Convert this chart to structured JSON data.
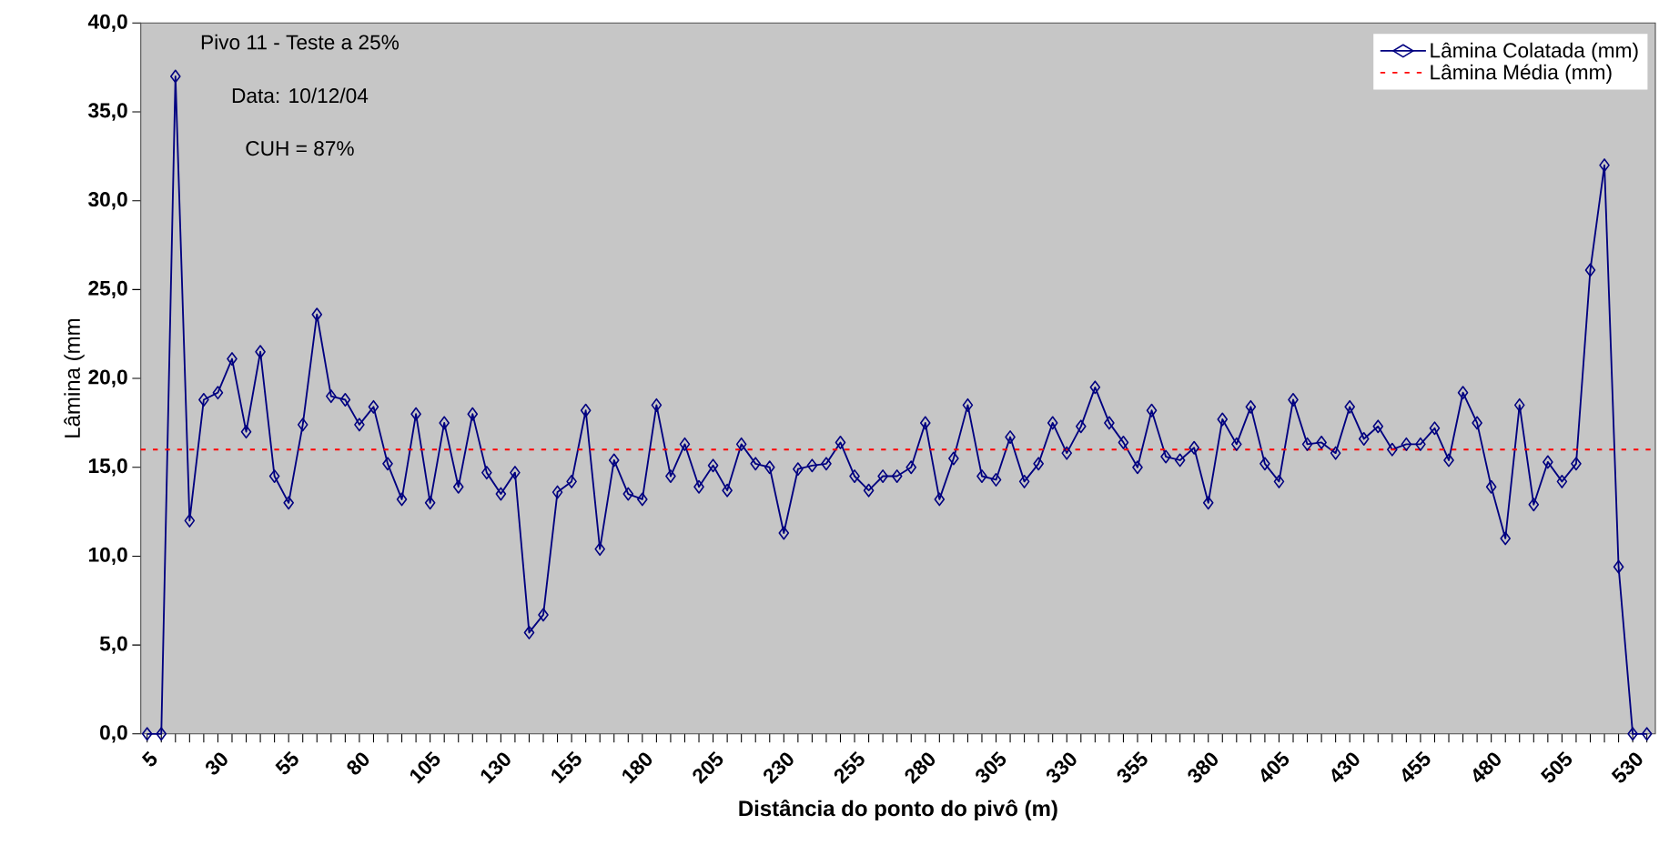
{
  "chart_data": {
    "type": "line",
    "xlabel": "Distância do ponto do pivô (m)",
    "ylabel": "Lâmina (mm",
    "annotations": [
      "Pivo 11 - Teste a 25%",
      "Data: 10/12/04",
      "CUH = 87%"
    ],
    "categories": [
      "5",
      null,
      null,
      null,
      null,
      "30",
      null,
      null,
      null,
      null,
      "55",
      null,
      null,
      null,
      null,
      "80",
      null,
      null,
      null,
      null,
      "105",
      null,
      null,
      null,
      null,
      "130",
      null,
      null,
      null,
      null,
      "155",
      null,
      null,
      null,
      null,
      "180",
      null,
      null,
      null,
      null,
      "205",
      null,
      null,
      null,
      null,
      "230",
      null,
      null,
      null,
      null,
      "255",
      null,
      null,
      null,
      null,
      "280",
      null,
      null,
      null,
      null,
      "305",
      null,
      null,
      null,
      null,
      "330",
      null,
      null,
      null,
      null,
      "355",
      null,
      null,
      null,
      null,
      "380",
      null,
      null,
      null,
      null,
      "405",
      null,
      null,
      null,
      null,
      "430",
      null,
      null,
      null,
      null,
      "455",
      null,
      null,
      null,
      null,
      "480",
      null,
      null,
      null,
      null,
      "505",
      null,
      null,
      null,
      null,
      "530",
      null
    ],
    "series": [
      {
        "name": "Lâmina Colatada (mm)",
        "color": "#000080",
        "values": [
          0,
          0,
          37.0,
          12.0,
          18.8,
          19.2,
          21.1,
          17.0,
          21.5,
          14.5,
          13.0,
          17.4,
          23.6,
          19.0,
          18.8,
          17.4,
          18.4,
          15.2,
          13.2,
          18.0,
          13.0,
          17.5,
          13.9,
          18.0,
          14.7,
          13.5,
          14.7,
          5.7,
          6.7,
          13.6,
          14.2,
          18.2,
          10.4,
          15.4,
          13.5,
          13.2,
          18.5,
          14.5,
          16.3,
          13.9,
          15.1,
          13.7,
          16.3,
          15.2,
          15.0,
          11.3,
          14.9,
          15.1,
          15.2,
          16.4,
          14.5,
          13.7,
          14.5,
          14.5,
          15.0,
          17.5,
          13.2,
          15.5,
          18.5,
          14.5,
          14.3,
          16.7,
          14.2,
          15.2,
          17.5,
          15.8,
          17.3,
          19.5,
          17.5,
          16.4,
          15.0,
          18.2,
          15.6,
          15.4,
          16.1,
          13.0,
          17.7,
          16.3,
          18.4,
          15.2,
          14.2,
          18.8,
          16.3,
          16.4,
          15.8,
          18.4,
          16.6,
          17.3,
          16.0,
          16.3,
          16.3,
          17.2,
          15.4,
          19.2,
          17.5,
          13.9,
          11.0,
          18.5,
          12.9,
          15.3,
          14.2,
          15.2,
          26.1,
          32.0,
          9.4,
          0,
          0
        ]
      }
    ],
    "ref_lines": [
      {
        "axis": "y",
        "value": 16.0,
        "label": "Lâmina Média (mm)",
        "color": "#ff0000",
        "line_style": "dashed"
      }
    ],
    "ylim": [
      0,
      40
    ],
    "yticks": [
      {
        "value": 0,
        "label": "0,0"
      },
      {
        "value": 5,
        "label": "5,0"
      },
      {
        "value": 10,
        "label": "10,0"
      },
      {
        "value": 15,
        "label": "15,0"
      },
      {
        "value": 20,
        "label": "20,0"
      },
      {
        "value": 25,
        "label": "25,0"
      },
      {
        "value": 30,
        "label": "30,0"
      },
      {
        "value": 35,
        "label": "35,0"
      },
      {
        "value": 40,
        "label": "40,0"
      }
    ],
    "marker": "diamond",
    "line_style": "solid",
    "legend": "top right",
    "grid": false
  }
}
